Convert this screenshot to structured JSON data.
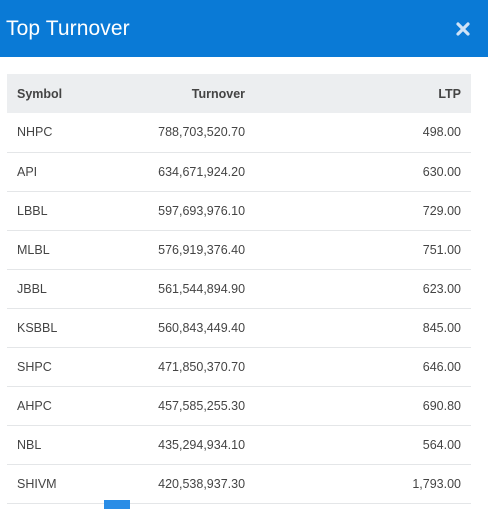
{
  "modal": {
    "title": "Top Turnover",
    "close_icon": "close-icon"
  },
  "table": {
    "headers": {
      "symbol": "Symbol",
      "turnover": "Turnover",
      "ltp": "LTP"
    },
    "rows": [
      {
        "symbol": "NHPC",
        "turnover": "788,703,520.70",
        "ltp": "498.00"
      },
      {
        "symbol": "API",
        "turnover": "634,671,924.20",
        "ltp": "630.00"
      },
      {
        "symbol": "LBBL",
        "turnover": "597,693,976.10",
        "ltp": "729.00"
      },
      {
        "symbol": "MLBL",
        "turnover": "576,919,376.40",
        "ltp": "751.00"
      },
      {
        "symbol": "JBBL",
        "turnover": "561,544,894.90",
        "ltp": "623.00"
      },
      {
        "symbol": "KSBBL",
        "turnover": "560,843,449.40",
        "ltp": "845.00"
      },
      {
        "symbol": "SHPC",
        "turnover": "471,850,370.70",
        "ltp": "646.00"
      },
      {
        "symbol": "AHPC",
        "turnover": "457,585,255.30",
        "ltp": "690.80"
      },
      {
        "symbol": "NBL",
        "turnover": "435,294,934.10",
        "ltp": "564.00"
      },
      {
        "symbol": "SHIVM",
        "turnover": "420,538,937.30",
        "ltp": "1,793.00"
      }
    ]
  },
  "colors": {
    "header_bg": "#0a7ad6",
    "table_head_bg": "#eceef0",
    "active_page": "#2a8de6"
  }
}
